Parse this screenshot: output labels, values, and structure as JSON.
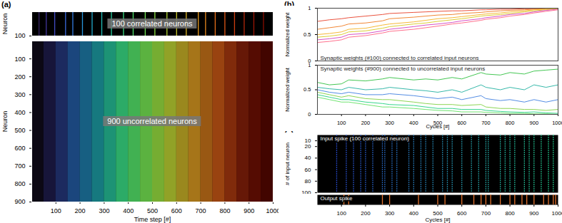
{
  "chart_data": [
    {
      "type": "raster",
      "panel_label": "(a)",
      "xlim": [
        0,
        1000
      ],
      "xticks": [
        100,
        200,
        300,
        400,
        500,
        600,
        700,
        800,
        900,
        1000
      ],
      "subplots": [
        {
          "annotation": "100 correlated neurons",
          "y_label": "Neuron",
          "ylim": [
            0,
            100
          ],
          "yticks": [
            100
          ],
          "tick_labels": "y",
          "spike_times": [
            30,
            60,
            95,
            140,
            170,
            210,
            250,
            290,
            330,
            380,
            420,
            470,
            510,
            560,
            600,
            640,
            690,
            720,
            760,
            800,
            840,
            880,
            920,
            960
          ]
        },
        {
          "annotation": "900 uncorrelated neurons",
          "y_label": "Neuron",
          "x_label": "Time step [#]",
          "ylim": [
            0,
            900
          ],
          "yticks": [
            100,
            200,
            300,
            400,
            500,
            600,
            700,
            800,
            900
          ],
          "bins": [
            0,
            50,
            100,
            150,
            200,
            250,
            300,
            350,
            400,
            450,
            500,
            550,
            600,
            650,
            700,
            750,
            800,
            850,
            900,
            950,
            1000
          ],
          "density": [
            0.2,
            0.3,
            0.4,
            0.5,
            0.55,
            0.6,
            0.65,
            0.7,
            0.7,
            0.7,
            0.7,
            0.7,
            0.65,
            0.65,
            0.6,
            0.6,
            0.55,
            0.5,
            0.5,
            0.45
          ]
        }
      ]
    },
    {
      "type": "line",
      "panel_label": "(b)",
      "xlim": [
        0,
        1000
      ],
      "xticks": [
        100,
        200,
        300,
        400,
        500,
        600,
        700,
        800,
        900,
        1000
      ],
      "x": [
        0,
        50,
        100,
        130,
        200,
        270,
        300,
        400,
        450,
        500,
        560,
        600,
        680,
        700,
        760,
        800,
        860,
        900,
        950,
        1000
      ],
      "subplots": [
        {
          "title": "Synaptic weights (#100) connected to correlated input neurons",
          "y_label": "Normalized weight",
          "ylim": [
            0,
            1
          ],
          "yticks": [
            0,
            0.5,
            1
          ],
          "tick_labels": "y",
          "series": [
            {
              "color": "#e8402a",
              "values": [
                0.75,
                0.78,
                0.8,
                0.82,
                0.85,
                0.88,
                0.9,
                0.92,
                0.93,
                0.94,
                0.95,
                0.95,
                0.97,
                0.97,
                0.98,
                0.98,
                0.99,
                0.99,
                1,
                1
              ]
            },
            {
              "color": "#f07a20",
              "values": [
                0.6,
                0.63,
                0.66,
                0.7,
                0.72,
                0.76,
                0.8,
                0.83,
                0.85,
                0.87,
                0.88,
                0.9,
                0.92,
                0.93,
                0.95,
                0.96,
                0.97,
                0.98,
                0.99,
                1
              ]
            },
            {
              "color": "#f5b020",
              "values": [
                0.5,
                0.52,
                0.55,
                0.6,
                0.62,
                0.68,
                0.7,
                0.74,
                0.77,
                0.8,
                0.82,
                0.84,
                0.88,
                0.89,
                0.91,
                0.93,
                0.95,
                0.97,
                0.98,
                1
              ]
            },
            {
              "color": "#d8c820",
              "values": [
                0.45,
                0.47,
                0.5,
                0.55,
                0.57,
                0.62,
                0.65,
                0.7,
                0.72,
                0.75,
                0.78,
                0.8,
                0.85,
                0.86,
                0.88,
                0.9,
                0.93,
                0.95,
                0.97,
                0.99
              ]
            },
            {
              "color": "#d040c0",
              "values": [
                0.4,
                0.42,
                0.45,
                0.5,
                0.52,
                0.57,
                0.6,
                0.65,
                0.68,
                0.7,
                0.73,
                0.76,
                0.8,
                0.82,
                0.85,
                0.88,
                0.9,
                0.93,
                0.96,
                0.98
              ]
            },
            {
              "color": "#ff6080",
              "values": [
                0.35,
                0.37,
                0.4,
                0.45,
                0.48,
                0.53,
                0.56,
                0.6,
                0.63,
                0.66,
                0.7,
                0.72,
                0.77,
                0.79,
                0.82,
                0.85,
                0.88,
                0.91,
                0.94,
                0.97
              ]
            }
          ]
        },
        {
          "title": "Synaptic weights (#900) connected to uncorrelated input neurons",
          "y_label": "Normalized weight",
          "x_label": "Cycles [#]",
          "ylim": [
            0,
            1
          ],
          "yticks": [
            0,
            0.5,
            1
          ],
          "series": [
            {
              "color": "#30c040",
              "values": [
                0.65,
                0.6,
                0.62,
                0.7,
                0.68,
                0.72,
                0.75,
                0.7,
                0.72,
                0.7,
                0.75,
                0.72,
                0.85,
                0.82,
                0.8,
                0.85,
                0.82,
                0.88,
                0.9,
                0.92
              ]
            },
            {
              "color": "#20b0a0",
              "values": [
                0.55,
                0.52,
                0.5,
                0.55,
                0.5,
                0.52,
                0.55,
                0.5,
                0.48,
                0.45,
                0.5,
                0.45,
                0.6,
                0.55,
                0.5,
                0.55,
                0.5,
                0.6,
                0.55,
                0.6
              ]
            },
            {
              "color": "#4080e0",
              "values": [
                0.5,
                0.45,
                0.42,
                0.45,
                0.4,
                0.4,
                0.42,
                0.38,
                0.35,
                0.32,
                0.35,
                0.3,
                0.38,
                0.32,
                0.28,
                0.3,
                0.25,
                0.3,
                0.25,
                0.3
              ]
            },
            {
              "color": "#80d040",
              "values": [
                0.45,
                0.4,
                0.35,
                0.38,
                0.32,
                0.3,
                0.3,
                0.25,
                0.22,
                0.2,
                0.2,
                0.18,
                0.2,
                0.15,
                0.12,
                0.12,
                0.1,
                0.1,
                0.08,
                0.1
              ]
            },
            {
              "color": "#20d080",
              "values": [
                0.4,
                0.35,
                0.3,
                0.3,
                0.25,
                0.22,
                0.2,
                0.18,
                0.15,
                0.12,
                0.12,
                0.1,
                0.1,
                0.08,
                0.06,
                0.05,
                0.04,
                0.05,
                0.03,
                0.02
              ]
            },
            {
              "color": "#60e060",
              "values": [
                0.35,
                0.3,
                0.25,
                0.25,
                0.2,
                0.15,
                0.15,
                0.12,
                0.1,
                0.08,
                0.07,
                0.05,
                0.05,
                0.04,
                0.03,
                0.02,
                0.02,
                0.01,
                0.01,
                0
              ]
            }
          ]
        }
      ]
    },
    {
      "type": "raster",
      "panel_label": "(c)",
      "xlim": [
        0,
        1000
      ],
      "xticks": [
        100,
        200,
        300,
        400,
        500,
        600,
        700,
        800,
        900,
        1000
      ],
      "subplots": [
        {
          "annotation": "Input spike (100 correlated neuron)",
          "y_label": "# of input neuron",
          "ylim": [
            0,
            100
          ],
          "yticks": [
            10,
            20,
            40,
            60,
            80,
            100
          ],
          "tick_labels": "y",
          "spike_times": [
            80,
            120,
            150,
            180,
            200,
            230,
            270,
            280,
            310,
            330,
            380,
            400,
            430,
            450,
            480,
            520,
            540,
            560,
            600,
            640,
            670,
            700,
            710,
            760,
            780,
            800,
            820,
            860,
            880,
            900,
            930,
            960,
            980
          ]
        },
        {
          "annotation": "Output spike",
          "x_label": "Cycles [#]",
          "tick_labels": "x",
          "color": "#f07830",
          "spike_times": [
            110,
            130,
            270,
            300,
            420,
            500,
            530,
            600,
            650,
            680,
            700,
            720,
            760,
            800,
            820,
            850,
            870,
            900,
            940,
            960,
            980,
            990
          ]
        }
      ]
    }
  ]
}
